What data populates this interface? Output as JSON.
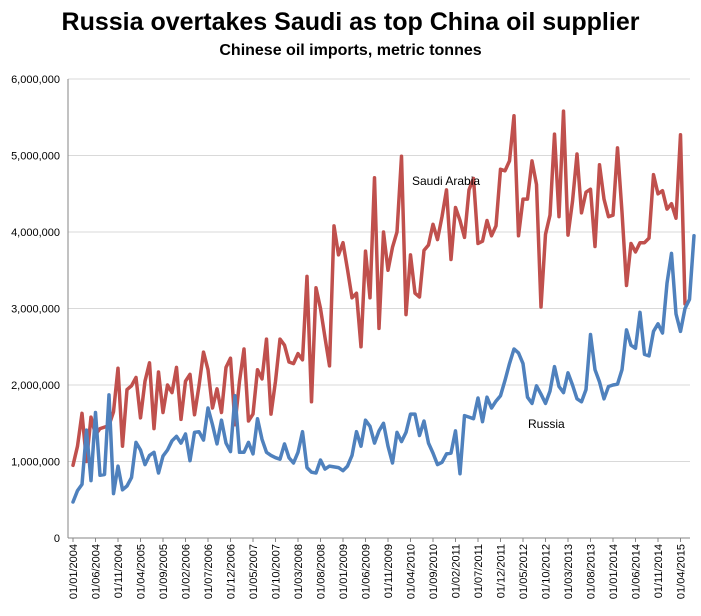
{
  "chart_data": {
    "type": "line",
    "title": "Russia overtakes Saudi as top China oil supplier",
    "subtitle": "Chinese oil imports, metric tonnes",
    "xlabel": "",
    "ylabel": "",
    "ylim": [
      0,
      6000000
    ],
    "y_ticks": [
      0,
      1000000,
      2000000,
      3000000,
      4000000,
      5000000,
      6000000
    ],
    "y_tick_labels": [
      "0",
      "1,000,000",
      "2,000,000",
      "3,000,000",
      "4,000,000",
      "5,000,000",
      "6,000,000"
    ],
    "x_tick_labels": [
      "01/01/2004",
      "01/06/2004",
      "01/11/2004",
      "01/04/2005",
      "01/09/2005",
      "01/02/2006",
      "01/07/2006",
      "01/12/2006",
      "01/05/2007",
      "01/10/2007",
      "01/03/2008",
      "01/08/2008",
      "01/01/2009",
      "01/06/2009",
      "01/11/2009",
      "01/04/2010",
      "01/09/2010",
      "01/02/2011",
      "01/07/2011",
      "01/12/2011",
      "01/05/2012",
      "01/10/2012",
      "01/03/2013",
      "01/08/2013",
      "01/01/2014",
      "01/06/2014",
      "01/11/2014",
      "01/04/2015"
    ],
    "x_tick_months": [
      0,
      5,
      10,
      15,
      20,
      25,
      30,
      35,
      40,
      45,
      50,
      55,
      60,
      65,
      70,
      75,
      80,
      85,
      90,
      95,
      100,
      105,
      110,
      115,
      120,
      125,
      130,
      135
    ],
    "x_range_months": [
      0,
      136
    ],
    "grid": "horizontal",
    "series": [
      {
        "name": "Saudi Arabia",
        "label": "Saudi Arabia",
        "color": "#c0504d",
        "values": [
          950000,
          1200000,
          1630000,
          1000000,
          1580000,
          1350000,
          1430000,
          1450000,
          1470000,
          1650000,
          2220000,
          1200000,
          1940000,
          1990000,
          2100000,
          1570000,
          2050000,
          2290000,
          1430000,
          2170000,
          1640000,
          2000000,
          1900000,
          2230000,
          1550000,
          2050000,
          2140000,
          1610000,
          1990000,
          2430000,
          2200000,
          1700000,
          1950000,
          1640000,
          2230000,
          2350000,
          1480000,
          2050000,
          2470000,
          1530000,
          1620000,
          2200000,
          2080000,
          2600000,
          1620000,
          2050000,
          2600000,
          2520000,
          2300000,
          2280000,
          2410000,
          2330000,
          3420000,
          1780000,
          3270000,
          3000000,
          2620000,
          2250000,
          4080000,
          3700000,
          3860000,
          3510000,
          3140000,
          3200000,
          2500000,
          3750000,
          3140000,
          4710000,
          2740000,
          4000000,
          3500000,
          3800000,
          4000000,
          4990000,
          2920000,
          3700000,
          3200000,
          3150000,
          3760000,
          3830000,
          4100000,
          3900000,
          4200000,
          4550000,
          3640000,
          4320000,
          4150000,
          3930000,
          4550000,
          4700000,
          3850000,
          3880000,
          4150000,
          3950000,
          4080000,
          4820000,
          4800000,
          4930000,
          5520000,
          3950000,
          4430000,
          4430000,
          4930000,
          4620000,
          3020000,
          3970000,
          4220000,
          5280000,
          4200000,
          5580000,
          3960000,
          4400000,
          5020000,
          4250000,
          4520000,
          4560000,
          3810000,
          4880000,
          4430000,
          4200000,
          4220000,
          5100000,
          4260000,
          3300000,
          3850000,
          3740000,
          3860000,
          3860000,
          3920000,
          4750000,
          4500000,
          4540000,
          4300000,
          4370000,
          4180000,
          5270000,
          3060000
        ],
        "label_pos": [
          380,
          185
        ]
      },
      {
        "name": "Russia",
        "label": "Russia",
        "color": "#4f81bd",
        "values": [
          470000,
          620000,
          700000,
          1410000,
          750000,
          1640000,
          820000,
          830000,
          1870000,
          580000,
          940000,
          630000,
          680000,
          790000,
          1250000,
          1150000,
          960000,
          1080000,
          1120000,
          850000,
          1070000,
          1150000,
          1270000,
          1330000,
          1240000,
          1360000,
          1010000,
          1380000,
          1390000,
          1280000,
          1700000,
          1480000,
          1230000,
          1540000,
          1240000,
          1130000,
          1860000,
          1120000,
          1120000,
          1250000,
          1100000,
          1560000,
          1290000,
          1120000,
          1080000,
          1050000,
          1030000,
          1230000,
          1050000,
          980000,
          1120000,
          1390000,
          920000,
          860000,
          850000,
          1020000,
          900000,
          940000,
          930000,
          920000,
          880000,
          940000,
          1080000,
          1390000,
          1200000,
          1540000,
          1460000,
          1240000,
          1400000,
          1500000,
          1200000,
          980000,
          1380000,
          1260000,
          1380000,
          1620000,
          1620000,
          1340000,
          1530000,
          1240000,
          1110000,
          960000,
          990000,
          1100000,
          1110000,
          1400000,
          840000,
          1600000,
          1580000,
          1560000,
          1830000,
          1520000,
          1840000,
          1700000,
          1790000,
          1860000,
          2060000,
          2280000,
          2470000,
          2420000,
          2280000,
          1840000,
          1760000,
          1990000,
          1880000,
          1760000,
          1920000,
          2240000,
          1980000,
          1900000,
          2160000,
          2000000,
          1820000,
          1780000,
          1940000,
          2660000,
          2200000,
          2040000,
          1820000,
          1980000,
          2000000,
          2010000,
          2200000,
          2720000,
          2520000,
          2480000,
          2950000,
          2400000,
          2380000,
          2700000,
          2800000,
          2680000,
          3330000,
          3720000,
          2930000,
          2700000,
          3000000,
          3120000,
          3950000
        ],
        "label_pos": [
          525,
          425
        ]
      }
    ]
  }
}
